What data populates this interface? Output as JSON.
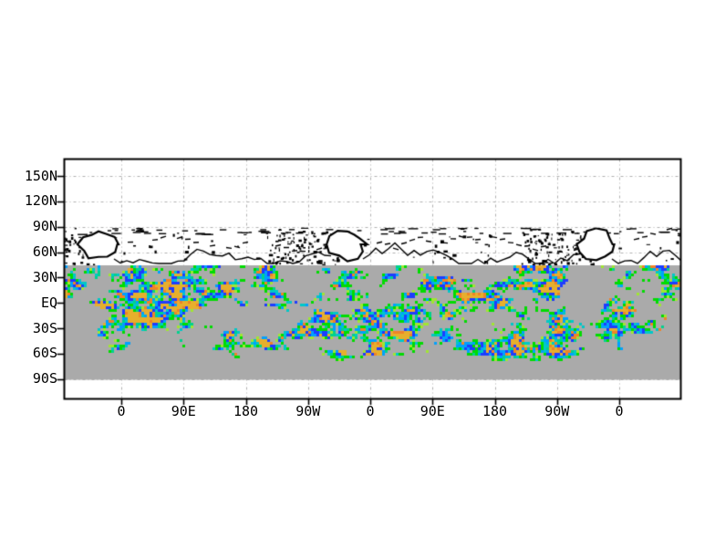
{
  "page": {
    "background": "#ffffff"
  },
  "chart_data": {
    "type": "heatmap",
    "title": "",
    "xlabel": "",
    "ylabel": "",
    "x_ticks": [
      "0",
      "90E",
      "180",
      "90W",
      "0",
      "90E",
      "180",
      "90W",
      "0"
    ],
    "x_tick_degrees": [
      0,
      90,
      180,
      270,
      360,
      450,
      540,
      630,
      720
    ],
    "y_ticks": [
      "150N",
      "120N",
      "90N",
      "60N",
      "30N",
      "EQ",
      "30S",
      "60S",
      "90S"
    ],
    "y_tick_degrees": [
      150,
      120,
      90,
      60,
      30,
      0,
      -30,
      -60,
      -90
    ],
    "grid": "dash-dot, light gray, on",
    "legend": "none",
    "colorbar": "none",
    "colors": {
      "background": "#ffffff",
      "frame": "#000000",
      "gridline": "#b0b0b0",
      "tick_label": "#000000",
      "coastline": "#000000",
      "nodata_gray": "#aaaaaa",
      "palette_low_to_high": [
        "#00dc00",
        "#a0e632",
        "#00d28c",
        "#00c8c8",
        "#00a0ff",
        "#1e3cff",
        "#f08228",
        "#e6af2d"
      ]
    },
    "regions": {
      "coastline_band_rows": "black map outlines on white between the 90N and 30N grid rows",
      "gray_band_rows": "solid gray field from just below 60N row down to the 90S row",
      "speckle_rows": "colored data speckles occupy the gray band from its top to just below the 60S row"
    }
  }
}
